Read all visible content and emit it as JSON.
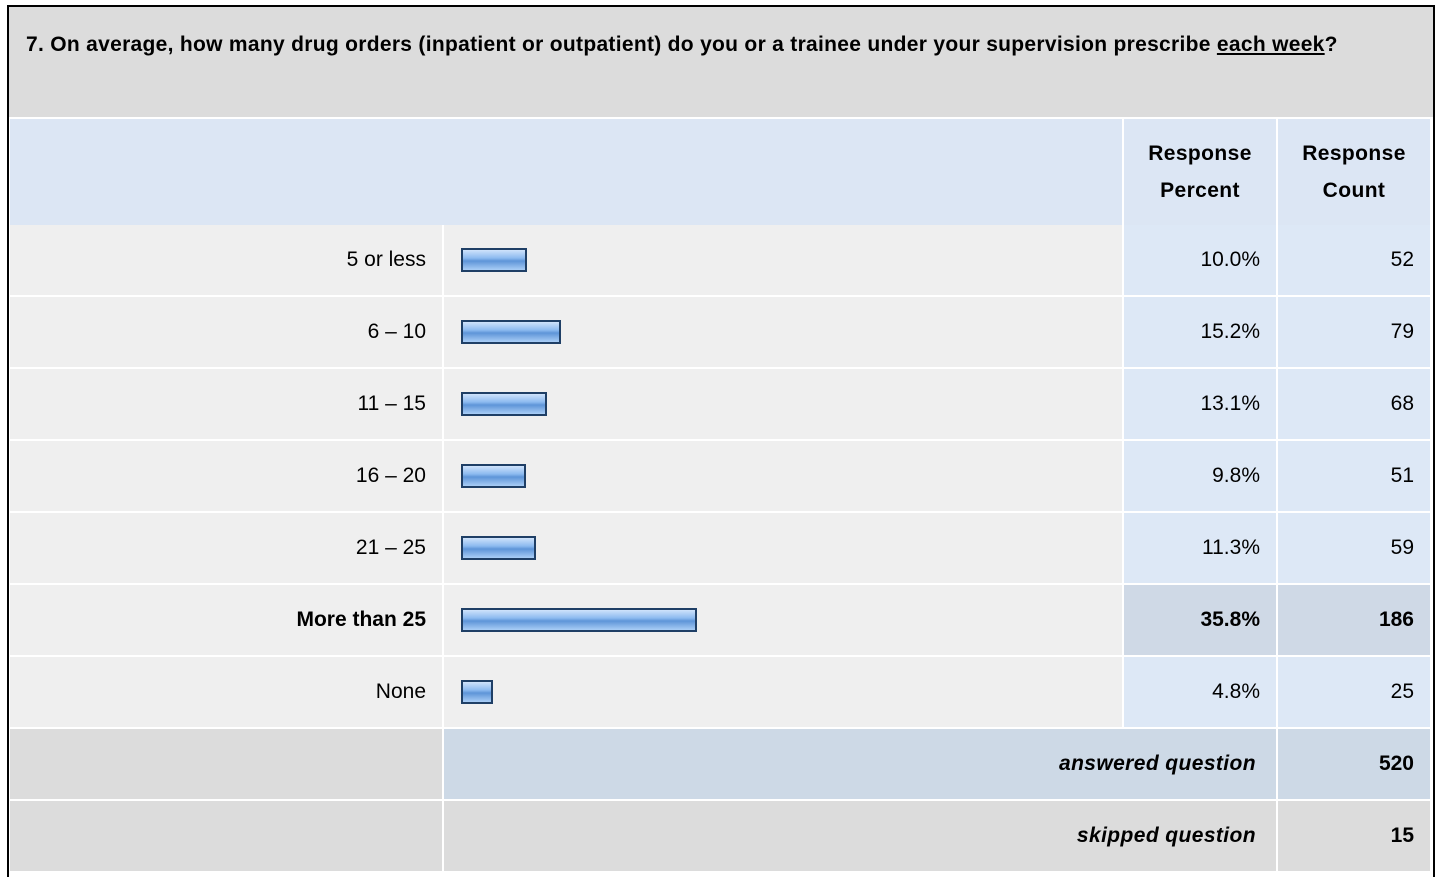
{
  "chart_data": {
    "type": "bar",
    "title_parts": [
      "7. On average, how many drug orders (inpatient or outpatient) do you or a trainee under your supervision prescribe ",
      "each week",
      "?"
    ],
    "headers": [
      "Response Percent",
      "Response Count"
    ],
    "categories": [
      "5 or less",
      "6 – 10",
      "11 – 15",
      "16 – 20",
      "21 – 25",
      "More than 25",
      "None"
    ],
    "values": [
      10.0,
      15.2,
      13.1,
      9.8,
      11.3,
      35.8,
      4.8
    ],
    "value_labels": [
      "10.0%",
      "15.2%",
      "13.1%",
      "9.8%",
      "11.3%",
      "35.8%",
      "4.8%"
    ],
    "counts": [
      52,
      79,
      68,
      51,
      59,
      186,
      25
    ],
    "answered": {
      "label": "answered question",
      "value": 520
    },
    "skipped": {
      "label": "skipped question",
      "value": 15
    }
  }
}
